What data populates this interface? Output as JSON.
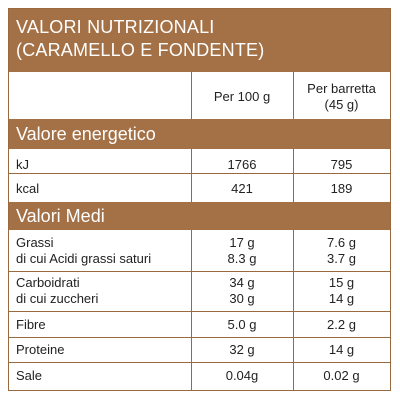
{
  "title_line1": "VALORI NUTRIZIONALI",
  "title_line2": "(CARAMELLO E FONDENTE)",
  "col_header_1": "Per 100 g",
  "col_header_2_line1": "Per barretta",
  "col_header_2_line2": "(45 g)",
  "section_energy": "Valore energetico",
  "section_medi": "Valori Medi",
  "rows": {
    "kj": {
      "label": "kJ",
      "v100": "1766",
      "vbar": "795"
    },
    "kcal": {
      "label": "kcal",
      "v100": "421",
      "vbar": "189"
    },
    "grassi": {
      "label": "Grassi",
      "v100": "17 g",
      "vbar": "7.6 g"
    },
    "saturi": {
      "label": "di cui Acidi grassi saturi",
      "v100": "8.3 g",
      "vbar": "3.7 g"
    },
    "carbo": {
      "label": "Carboidrati",
      "v100": "34 g",
      "vbar": "15 g"
    },
    "zuccheri": {
      "label": "di cui zuccheri",
      "v100": "30 g",
      "vbar": "14 g"
    },
    "fibre": {
      "label": "Fibre",
      "v100": "5.0 g",
      "vbar": "2.2 g"
    },
    "proteine": {
      "label": "Proteine",
      "v100": "32 g",
      "vbar": "14 g"
    },
    "sale": {
      "label": "Sale",
      "v100": "0.04g",
      "vbar": "0.02 g"
    }
  },
  "colors": {
    "brown": "#a47147",
    "border": "#9a6a3e"
  }
}
